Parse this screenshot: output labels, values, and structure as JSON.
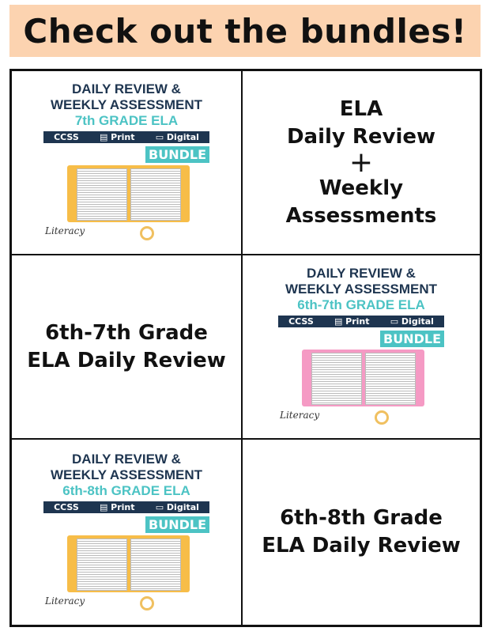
{
  "banner": {
    "title": "Check out the bundles!"
  },
  "cards": [
    {
      "line1": "DAILY REVIEW &",
      "line2": "WEEKLY ASSESSMENT",
      "grade": "7th GRADE  ELA",
      "ccss": "CCSS",
      "print": "Print",
      "digital": "Digital",
      "bundle": "BUNDLE",
      "logo": "Literacy",
      "binder_color": "#f7bd48"
    },
    {
      "line1": "DAILY REVIEW &",
      "line2": "WEEKLY ASSESSMENT",
      "grade": "6th-7th GRADE  ELA",
      "ccss": "CCSS",
      "print": "Print",
      "digital": "Digital",
      "bundle": "BUNDLE",
      "logo": "Literacy",
      "binder_color": "#f59ac4"
    },
    {
      "line1": "DAILY REVIEW &",
      "line2": "WEEKLY ASSESSMENT",
      "grade": "6th-8th GRADE  ELA",
      "ccss": "CCSS",
      "print": "Print",
      "digital": "Digital",
      "bundle": "BUNDLE",
      "logo": "Literacy",
      "binder_color": "#f7bd48"
    }
  ],
  "labels": {
    "r1": {
      "l1": "ELA",
      "l2": "Daily Review",
      "plus": "+",
      "l3": "Weekly",
      "l4": "Assessments"
    },
    "r2": {
      "l1": "6th-7th Grade",
      "l2": "ELA Daily Review"
    },
    "r3": {
      "l1": "6th-8th Grade",
      "l2": "ELA Daily Review"
    }
  }
}
